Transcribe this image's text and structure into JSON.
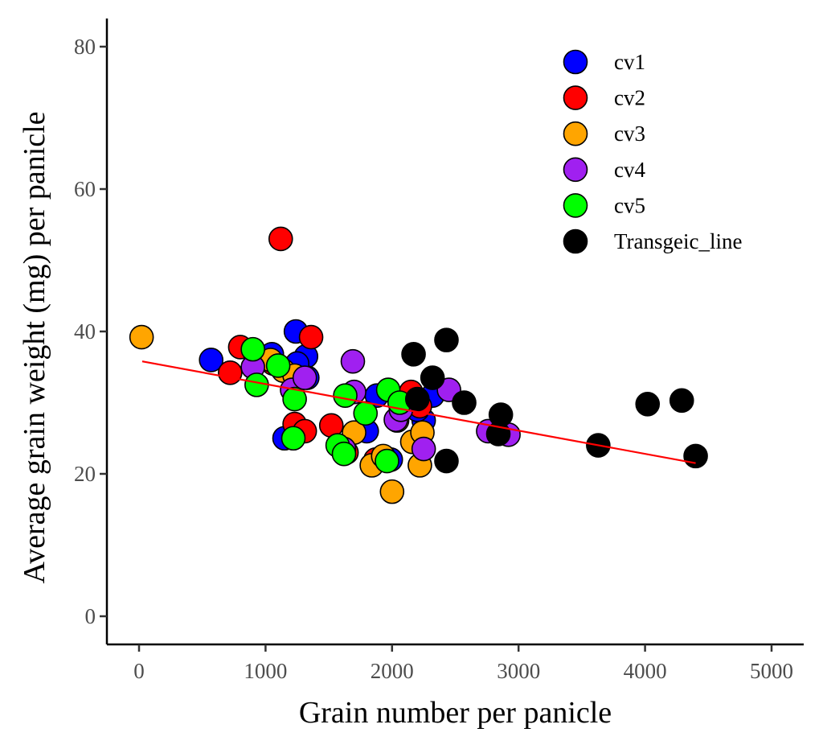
{
  "chart_data": {
    "type": "scatter",
    "title": "",
    "xlabel": "Grain number per panicle",
    "ylabel": "Average grain weight (mg) per panicle",
    "xlim": [
      -250,
      5250
    ],
    "ylim": [
      -4,
      84
    ],
    "xticks": [
      0,
      1000,
      2000,
      3000,
      4000,
      5000
    ],
    "yticks": [
      0,
      20,
      40,
      60,
      80
    ],
    "grid": false,
    "legend_position": "top-right",
    "series": [
      {
        "name": "cv1",
        "color": "#0000FF",
        "points": [
          [
            570,
            36.0
          ],
          [
            1050,
            36.8
          ],
          [
            1240,
            40.0
          ],
          [
            1320,
            36.5
          ],
          [
            1330,
            33.5
          ],
          [
            1150,
            25.0
          ],
          [
            1880,
            31.0
          ],
          [
            1250,
            35.5
          ],
          [
            1800,
            26.0
          ],
          [
            1990,
            22.0
          ],
          [
            2250,
            27.5
          ],
          [
            2320,
            31.0
          ],
          [
            2200,
            29.0
          ]
        ]
      },
      {
        "name": "cv2",
        "color": "#FF0000",
        "points": [
          [
            1120,
            53.0
          ],
          [
            720,
            34.2
          ],
          [
            800,
            37.8
          ],
          [
            1360,
            39.2
          ],
          [
            1230,
            27.0
          ],
          [
            1310,
            26.0
          ],
          [
            1520,
            26.8
          ],
          [
            1640,
            23.0
          ],
          [
            1870,
            22.0
          ],
          [
            2150,
            31.5
          ],
          [
            2220,
            29.5
          ],
          [
            1060,
            35.5
          ]
        ]
      },
      {
        "name": "cv3",
        "color": "#FFA500",
        "points": [
          [
            20,
            39.2
          ],
          [
            1040,
            36.0
          ],
          [
            1140,
            34.5
          ],
          [
            1700,
            25.8
          ],
          [
            1840,
            21.2
          ],
          [
            1930,
            22.5
          ],
          [
            2000,
            17.5
          ],
          [
            2160,
            24.5
          ],
          [
            2220,
            21.2
          ],
          [
            2240,
            25.8
          ],
          [
            1230,
            33.8
          ],
          [
            2040,
            27.5
          ]
        ]
      },
      {
        "name": "cv4",
        "color": "#A020F0",
        "points": [
          [
            900,
            35.0
          ],
          [
            1210,
            31.8
          ],
          [
            1310,
            33.5
          ],
          [
            1690,
            35.8
          ],
          [
            1700,
            31.5
          ],
          [
            2030,
            27.6
          ],
          [
            2250,
            23.5
          ],
          [
            2450,
            31.8
          ],
          [
            2760,
            26.0
          ],
          [
            2920,
            25.5
          ],
          [
            1620,
            23.5
          ],
          [
            2070,
            29.0
          ]
        ]
      },
      {
        "name": "cv5",
        "color": "#00FF00",
        "points": [
          [
            900,
            37.5
          ],
          [
            930,
            32.5
          ],
          [
            1100,
            35.2
          ],
          [
            1220,
            25.0
          ],
          [
            1570,
            24.0
          ],
          [
            1620,
            22.8
          ],
          [
            1630,
            31.0
          ],
          [
            1790,
            28.5
          ],
          [
            1970,
            31.8
          ],
          [
            2060,
            30.0
          ],
          [
            1960,
            21.8
          ],
          [
            1230,
            30.5
          ]
        ]
      },
      {
        "name": "Transgeic_line",
        "color": "#000000",
        "points": [
          [
            2170,
            36.8
          ],
          [
            2430,
            38.8
          ],
          [
            2320,
            33.5
          ],
          [
            2200,
            30.5
          ],
          [
            2570,
            30.0
          ],
          [
            2860,
            28.3
          ],
          [
            2840,
            25.6
          ],
          [
            2430,
            21.8
          ],
          [
            3630,
            24.0
          ],
          [
            4020,
            29.8
          ],
          [
            4290,
            30.3
          ],
          [
            4400,
            22.5
          ]
        ]
      }
    ],
    "regression_line": {
      "color": "#FF0000",
      "x": [
        25,
        4400
      ],
      "y": [
        35.8,
        21.5
      ]
    }
  }
}
